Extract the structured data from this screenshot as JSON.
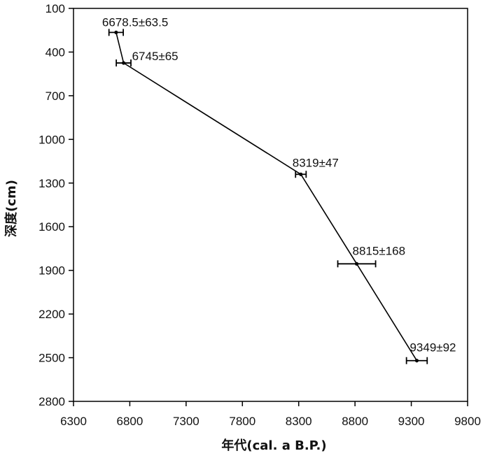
{
  "chart_data": {
    "type": "line",
    "xlabel": "年代(cal. a B.P.)",
    "ylabel": "深度(cm)",
    "xlim": [
      6300,
      9800
    ],
    "ylim": [
      100,
      2800
    ],
    "y_inverted": true,
    "x_ticks": [
      "6300",
      "6800",
      "7300",
      "7800",
      "8300",
      "8800",
      "9300",
      "9800"
    ],
    "y_ticks": [
      "100",
      "400",
      "700",
      "1000",
      "1300",
      "1600",
      "1900",
      "2200",
      "2500",
      "2800"
    ],
    "grid": false,
    "points": [
      {
        "age": 6678.5,
        "error": 63.5,
        "depth": 265,
        "label": "6678.5±63.5"
      },
      {
        "age": 6745,
        "error": 65,
        "depth": 475,
        "label": "6745±65"
      },
      {
        "age": 8319,
        "error": 47,
        "depth": 1240,
        "label": "8319±47"
      },
      {
        "age": 8815,
        "error": 168,
        "depth": 1855,
        "label": "8815±168"
      },
      {
        "age": 9349,
        "error": 92,
        "depth": 2520,
        "label": "9349±92"
      }
    ]
  }
}
